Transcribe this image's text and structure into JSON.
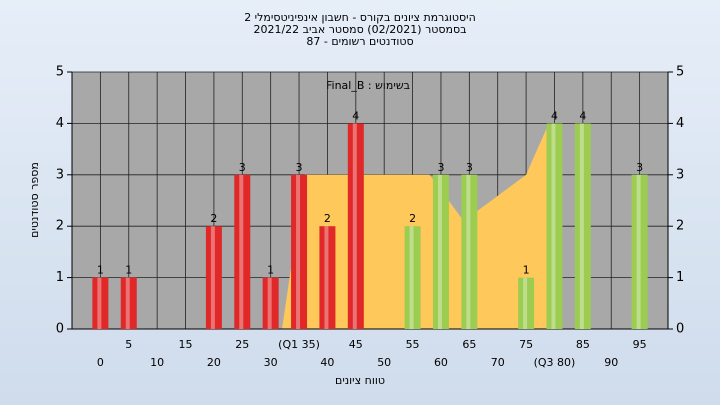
{
  "chart_data": {
    "type": "bar",
    "title": [
      "היסטוגרמת ציונים בקורס - חשבון אינפיניטסימלי 2",
      "בסמסטר (02/2021)  סמסטר אביב 2021/22",
      "סטודנטים רשומים - 87"
    ],
    "annotation": "Final_B : בשימוש",
    "ylabel": "מספר סטודנטים",
    "xlabel": "טווח ציונים",
    "x": [
      0,
      5,
      10,
      15,
      20,
      25,
      30,
      35,
      40,
      45,
      50,
      55,
      60,
      65,
      70,
      75,
      80,
      85,
      90,
      95
    ],
    "values": [
      1,
      1,
      0,
      0,
      2,
      3,
      1,
      3,
      2,
      4,
      0,
      2,
      3,
      3,
      0,
      1,
      4,
      4,
      0,
      3
    ],
    "colors": [
      "#e02828",
      "#e02828",
      "#e02828",
      "#e02828",
      "#e02828",
      "#e02828",
      "#e02828",
      "#e02828",
      "#e02828",
      "#e02828",
      "#9ccc50",
      "#9ccc50",
      "#9ccc50",
      "#9ccc50",
      "#9ccc50",
      "#9ccc50",
      "#9ccc50",
      "#9ccc50",
      "#9ccc50",
      "#9ccc50"
    ],
    "band": {
      "color": "#ffc85a",
      "x": [
        32,
        36,
        58,
        64,
        75,
        79
      ],
      "values": [
        0,
        3,
        3,
        2.1,
        3,
        4
      ]
    },
    "xlim": [
      -5,
      100
    ],
    "xticks": [
      0,
      5,
      10,
      15,
      20,
      25,
      30,
      {
        "value": 35,
        "label": "(Q1 35)"
      },
      40,
      45,
      50,
      55,
      60,
      65,
      70,
      75,
      {
        "value": 80,
        "label": "(Q3 80)"
      },
      85,
      90,
      95
    ],
    "ylim": [
      0,
      5
    ],
    "yticks": [
      0,
      1,
      2,
      3,
      4,
      5
    ],
    "y2lim": [
      0,
      5
    ],
    "y2ticks": [
      0,
      1,
      2,
      3,
      4,
      5
    ],
    "grid": true
  }
}
